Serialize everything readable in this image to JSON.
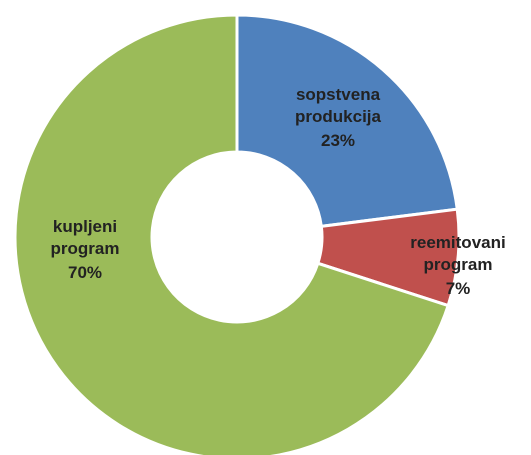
{
  "chart_data": {
    "type": "donut",
    "categories": [
      "sopstvena produkcija",
      "reemitovani program",
      "kupljeni program"
    ],
    "values": [
      23,
      7,
      70
    ],
    "value_labels": [
      "23%",
      "7%",
      "70%"
    ],
    "colors": [
      "#4f81bd",
      "#c0504d",
      "#9bbb59"
    ]
  }
}
